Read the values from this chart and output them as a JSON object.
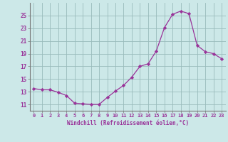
{
  "x": [
    0,
    1,
    2,
    3,
    4,
    5,
    6,
    7,
    8,
    9,
    10,
    11,
    12,
    13,
    14,
    15,
    16,
    17,
    18,
    19,
    20,
    21,
    22,
    23
  ],
  "y": [
    13.5,
    13.3,
    13.3,
    12.9,
    12.4,
    11.2,
    11.1,
    11.0,
    11.0,
    12.1,
    13.1,
    14.0,
    15.3,
    17.0,
    17.4,
    19.4,
    23.1,
    25.2,
    25.7,
    25.3,
    20.3,
    19.3,
    19.0,
    18.2
  ],
  "xlabel": "Windchill (Refroidissement éolien,°C)",
  "ylim": [
    10,
    27
  ],
  "xlim": [
    -0.5,
    23.5
  ],
  "yticks": [
    11,
    13,
    15,
    17,
    19,
    21,
    23,
    25
  ],
  "xticks": [
    0,
    1,
    2,
    3,
    4,
    5,
    6,
    7,
    8,
    9,
    10,
    11,
    12,
    13,
    14,
    15,
    16,
    17,
    18,
    19,
    20,
    21,
    22,
    23
  ],
  "line_color": "#993399",
  "marker_color": "#993399",
  "bg_color": "#cce8e8",
  "grid_color": "#99bbbb",
  "spine_color": "#777777"
}
